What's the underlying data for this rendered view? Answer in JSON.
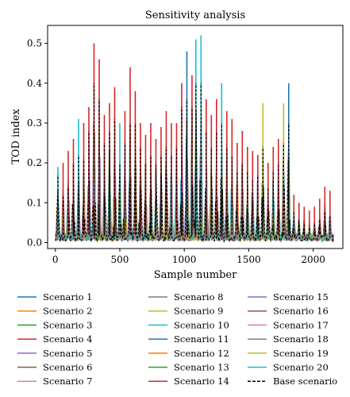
{
  "chart_data": {
    "type": "line",
    "title": "Sensitivity analysis",
    "xlabel": "Sample number",
    "ylabel": "TOD index",
    "xlim": [
      -60,
      2230
    ],
    "ylim": [
      -0.015,
      0.545
    ],
    "x_ticks": [
      0,
      500,
      1000,
      1500,
      2000
    ],
    "y_ticks": [
      0.0,
      0.1,
      0.2,
      0.3,
      0.4,
      0.5
    ],
    "x_tick_labels": [
      "0",
      "500",
      "1000",
      "1500",
      "2000"
    ],
    "y_tick_labels": [
      "0.0",
      "0.1",
      "0.2",
      "0.3",
      "0.4",
      "0.5"
    ],
    "n_samples": 2160,
    "grid": false,
    "legend_position": "below plot, 3 columns",
    "series": [
      {
        "name": "Scenario 1",
        "color": "#1f77b4",
        "style": "solid"
      },
      {
        "name": "Scenario 2",
        "color": "#ff7f0e",
        "style": "solid"
      },
      {
        "name": "Scenario 3",
        "color": "#2ca02c",
        "style": "solid"
      },
      {
        "name": "Scenario 4",
        "color": "#d62728",
        "style": "solid"
      },
      {
        "name": "Scenario 5",
        "color": "#9467bd",
        "style": "solid"
      },
      {
        "name": "Scenario 6",
        "color": "#8c564b",
        "style": "solid"
      },
      {
        "name": "Scenario 7",
        "color": "#e377c2",
        "style": "solid"
      },
      {
        "name": "Scenario 8",
        "color": "#7f7f7f",
        "style": "solid"
      },
      {
        "name": "Scenario 9",
        "color": "#bcbd22",
        "style": "solid"
      },
      {
        "name": "Scenario 10",
        "color": "#17becf",
        "style": "solid"
      },
      {
        "name": "Scenario 11",
        "color": "#1f77b4",
        "style": "solid"
      },
      {
        "name": "Scenario 12",
        "color": "#ff7f0e",
        "style": "solid"
      },
      {
        "name": "Scenario 13",
        "color": "#2ca02c",
        "style": "solid"
      },
      {
        "name": "Scenario 14",
        "color": "#d62728",
        "style": "solid"
      },
      {
        "name": "Scenario 15",
        "color": "#9467bd",
        "style": "solid"
      },
      {
        "name": "Scenario 16",
        "color": "#8c564b",
        "style": "solid"
      },
      {
        "name": "Scenario 17",
        "color": "#e377c2",
        "style": "solid"
      },
      {
        "name": "Scenario 18",
        "color": "#7f7f7f",
        "style": "solid"
      },
      {
        "name": "Scenario 19",
        "color": "#bcbd22",
        "style": "solid"
      },
      {
        "name": "Scenario 20",
        "color": "#17becf",
        "style": "solid"
      },
      {
        "name": "Base scenario",
        "color": "#000000",
        "style": "dashed"
      }
    ],
    "peaks": [
      {
        "x": 20,
        "base": 0.17,
        "max": 0.19,
        "top_color": "#17becf"
      },
      {
        "x": 60,
        "base": 0.12,
        "max": 0.2,
        "top_color": "#d62728"
      },
      {
        "x": 100,
        "base": 0.14,
        "max": 0.23,
        "top_color": "#d62728"
      },
      {
        "x": 140,
        "base": 0.2,
        "max": 0.26,
        "top_color": "#d62728"
      },
      {
        "x": 180,
        "base": 0.22,
        "max": 0.31,
        "top_color": "#17becf"
      },
      {
        "x": 220,
        "base": 0.21,
        "max": 0.3,
        "top_color": "#d62728"
      },
      {
        "x": 260,
        "base": 0.28,
        "max": 0.34,
        "top_color": "#d62728"
      },
      {
        "x": 300,
        "base": 0.4,
        "max": 0.5,
        "top_color": "#d62728"
      },
      {
        "x": 340,
        "base": 0.36,
        "max": 0.46,
        "top_color": "#d62728"
      },
      {
        "x": 380,
        "base": 0.25,
        "max": 0.32,
        "top_color": "#d62728"
      },
      {
        "x": 420,
        "base": 0.28,
        "max": 0.35,
        "top_color": "#d62728"
      },
      {
        "x": 460,
        "base": 0.31,
        "max": 0.39,
        "top_color": "#d62728"
      },
      {
        "x": 500,
        "base": 0.2,
        "max": 0.3,
        "top_color": "#17becf"
      },
      {
        "x": 540,
        "base": 0.25,
        "max": 0.33,
        "top_color": "#d62728"
      },
      {
        "x": 580,
        "base": 0.3,
        "max": 0.44,
        "top_color": "#d62728"
      },
      {
        "x": 620,
        "base": 0.3,
        "max": 0.38,
        "top_color": "#d62728"
      },
      {
        "x": 660,
        "base": 0.24,
        "max": 0.3,
        "top_color": "#d62728"
      },
      {
        "x": 700,
        "base": 0.2,
        "max": 0.27,
        "top_color": "#d62728"
      },
      {
        "x": 740,
        "base": 0.22,
        "max": 0.3,
        "top_color": "#d62728"
      },
      {
        "x": 780,
        "base": 0.2,
        "max": 0.26,
        "top_color": "#d62728"
      },
      {
        "x": 820,
        "base": 0.22,
        "max": 0.29,
        "top_color": "#d62728"
      },
      {
        "x": 860,
        "base": 0.24,
        "max": 0.33,
        "top_color": "#d62728"
      },
      {
        "x": 900,
        "base": 0.22,
        "max": 0.3,
        "top_color": "#d62728"
      },
      {
        "x": 940,
        "base": 0.24,
        "max": 0.3,
        "top_color": "#d62728"
      },
      {
        "x": 980,
        "base": 0.34,
        "max": 0.4,
        "top_color": "#d62728"
      },
      {
        "x": 1020,
        "base": 0.36,
        "max": 0.48,
        "top_color": "#1f77b4"
      },
      {
        "x": 1060,
        "base": 0.34,
        "max": 0.42,
        "top_color": "#d62728"
      },
      {
        "x": 1090,
        "base": 0.4,
        "max": 0.51,
        "top_color": "#17becf"
      },
      {
        "x": 1130,
        "base": 0.4,
        "max": 0.52,
        "top_color": "#17becf"
      },
      {
        "x": 1170,
        "base": 0.28,
        "max": 0.36,
        "top_color": "#d62728"
      },
      {
        "x": 1210,
        "base": 0.24,
        "max": 0.32,
        "top_color": "#d62728"
      },
      {
        "x": 1250,
        "base": 0.28,
        "max": 0.36,
        "top_color": "#d62728"
      },
      {
        "x": 1290,
        "base": 0.3,
        "max": 0.4,
        "top_color": "#17becf"
      },
      {
        "x": 1330,
        "base": 0.24,
        "max": 0.33,
        "top_color": "#d62728"
      },
      {
        "x": 1370,
        "base": 0.22,
        "max": 0.31,
        "top_color": "#d62728"
      },
      {
        "x": 1410,
        "base": 0.18,
        "max": 0.25,
        "top_color": "#d62728"
      },
      {
        "x": 1450,
        "base": 0.2,
        "max": 0.28,
        "top_color": "#d62728"
      },
      {
        "x": 1490,
        "base": 0.18,
        "max": 0.24,
        "top_color": "#d62728"
      },
      {
        "x": 1530,
        "base": 0.16,
        "max": 0.23,
        "top_color": "#d62728"
      },
      {
        "x": 1570,
        "base": 0.17,
        "max": 0.22,
        "top_color": "#d62728"
      },
      {
        "x": 1610,
        "base": 0.24,
        "max": 0.35,
        "top_color": "#bcbd22"
      },
      {
        "x": 1650,
        "base": 0.14,
        "max": 0.2,
        "top_color": "#d62728"
      },
      {
        "x": 1690,
        "base": 0.18,
        "max": 0.24,
        "top_color": "#d62728"
      },
      {
        "x": 1730,
        "base": 0.2,
        "max": 0.26,
        "top_color": "#d62728"
      },
      {
        "x": 1770,
        "base": 0.25,
        "max": 0.35,
        "top_color": "#bcbd22"
      },
      {
        "x": 1810,
        "base": 0.3,
        "max": 0.4,
        "top_color": "#1f77b4"
      },
      {
        "x": 1850,
        "base": 0.08,
        "max": 0.12,
        "top_color": "#d62728"
      },
      {
        "x": 1890,
        "base": 0.06,
        "max": 0.1,
        "top_color": "#d62728"
      },
      {
        "x": 1930,
        "base": 0.05,
        "max": 0.09,
        "top_color": "#d62728"
      },
      {
        "x": 1970,
        "base": 0.04,
        "max": 0.08,
        "top_color": "#d62728"
      },
      {
        "x": 2010,
        "base": 0.05,
        "max": 0.09,
        "top_color": "#d62728"
      },
      {
        "x": 2050,
        "base": 0.06,
        "max": 0.11,
        "top_color": "#d62728"
      },
      {
        "x": 2090,
        "base": 0.08,
        "max": 0.14,
        "top_color": "#d62728"
      },
      {
        "x": 2130,
        "base": 0.07,
        "max": 0.13,
        "top_color": "#d62728"
      }
    ]
  }
}
